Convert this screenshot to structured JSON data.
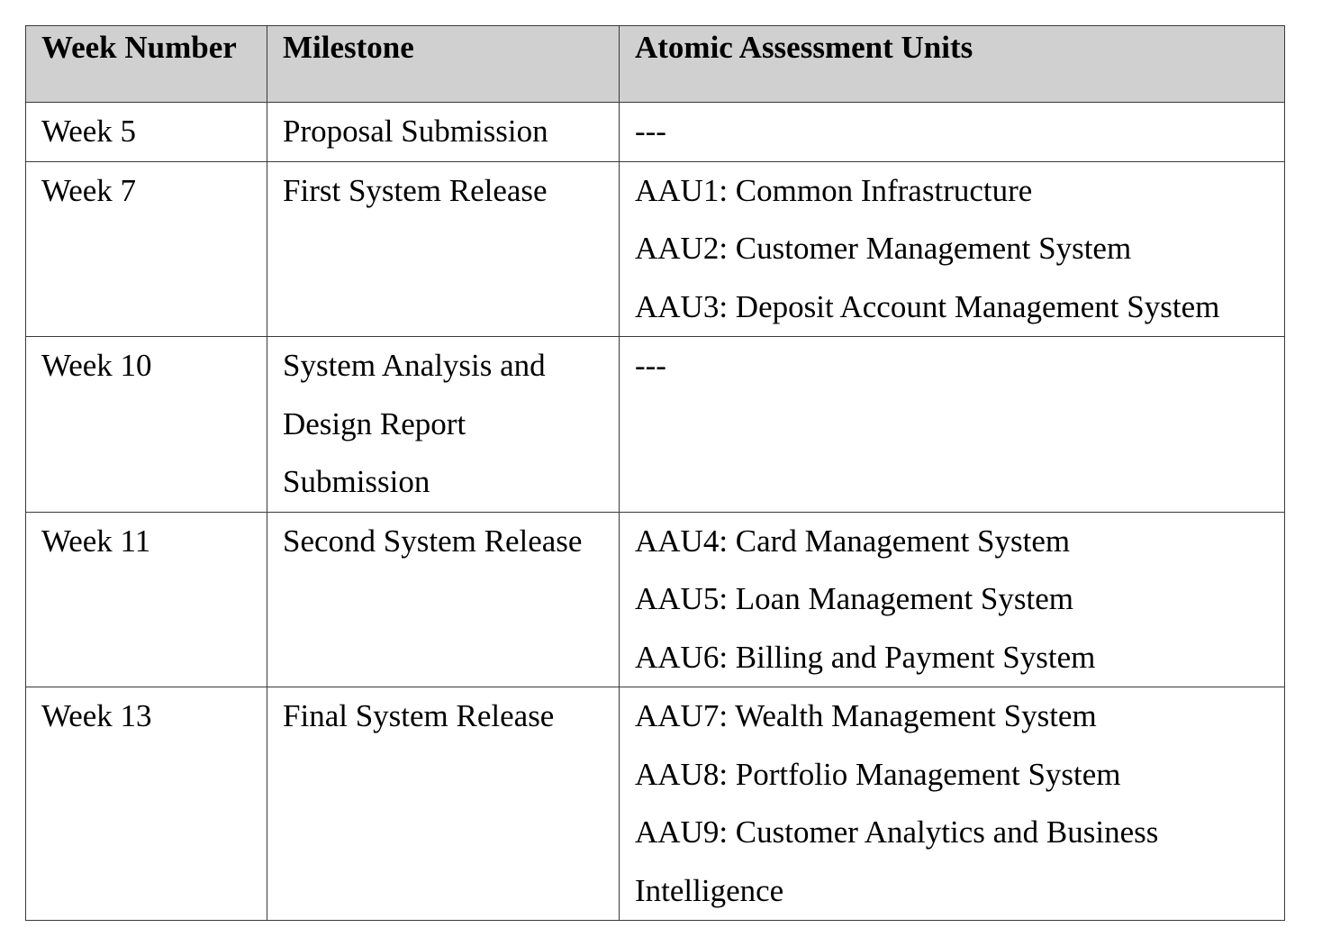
{
  "table": {
    "headers": [
      "Week Number",
      "Milestone",
      "Atomic Assessment Units"
    ],
    "rows": [
      {
        "week": "Week 5",
        "milestone_lines": [
          "Proposal Submission"
        ],
        "units": [
          "---"
        ]
      },
      {
        "week": "Week 7",
        "milestone_lines": [
          "First System Release"
        ],
        "units": [
          "AAU1: Common Infrastructure",
          "AAU2: Customer Management System",
          "AAU3: Deposit Account Management System"
        ]
      },
      {
        "week": "Week 10",
        "milestone_lines": [
          "System Analysis and",
          "Design Report",
          "Submission"
        ],
        "units": [
          "---"
        ]
      },
      {
        "week": "Week 11",
        "milestone_lines": [
          "Second System Release"
        ],
        "units": [
          "AAU4: Card Management System",
          "AAU5: Loan Management System",
          "AAU6: Billing and Payment System"
        ]
      },
      {
        "week": "Week 13",
        "milestone_lines": [
          "Final System Release"
        ],
        "units": [
          "AAU7: Wealth Management System",
          "AAU8: Portfolio Management System",
          "AAU9: Customer Analytics and Business",
          "Intelligence"
        ]
      }
    ]
  }
}
